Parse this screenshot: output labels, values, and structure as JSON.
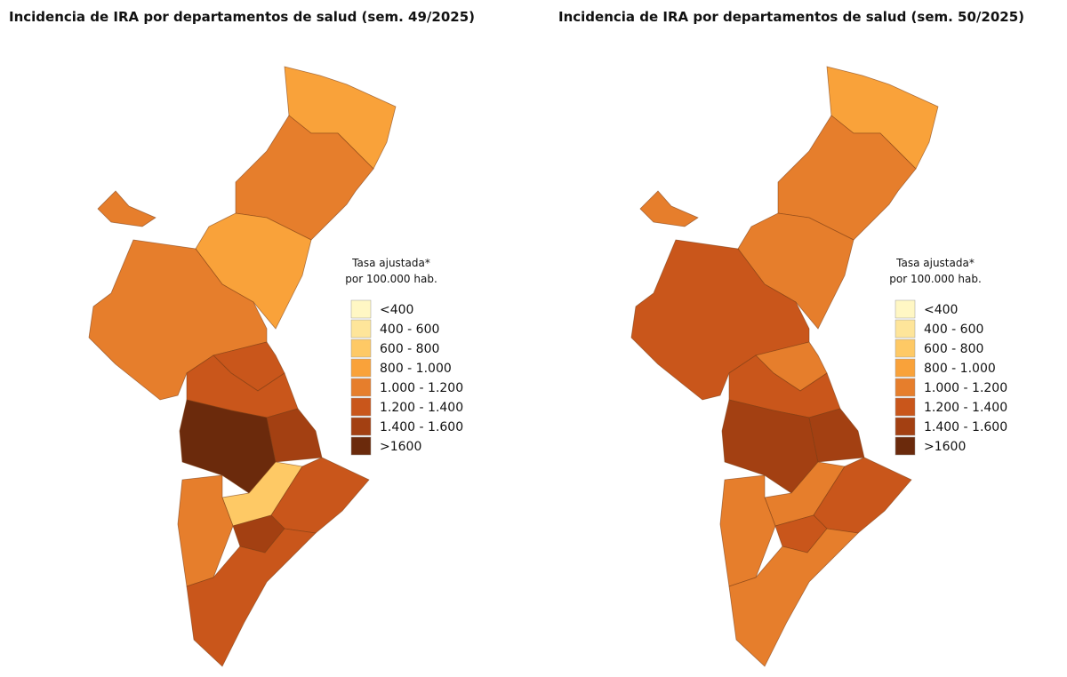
{
  "maps": [
    {
      "title": "Incidencia de IRA por departamentos de salud (sem. 49/2025)"
    },
    {
      "title": "Incidencia de IRA por departamentos de salud (sem. 50/2025)"
    }
  ],
  "legend": {
    "title_lines": [
      "Tasa ajustada*",
      "por 100.000 hab."
    ],
    "items": [
      {
        "label": "<400",
        "color": "#fff7c4"
      },
      {
        "label": "400 - 600",
        "color": "#fee59a"
      },
      {
        "label": "600 - 800",
        "color": "#fec965"
      },
      {
        "label": "800 - 1.000",
        "color": "#f9a23a"
      },
      {
        "label": "1.000 - 1.200",
        "color": "#e67e2c"
      },
      {
        "label": "1.200 - 1.400",
        "color": "#c9561b"
      },
      {
        "label": "1.400 - 1.600",
        "color": "#a34012"
      },
      {
        "label": ">1600",
        "color": "#6b2a0c"
      }
    ]
  }
}
